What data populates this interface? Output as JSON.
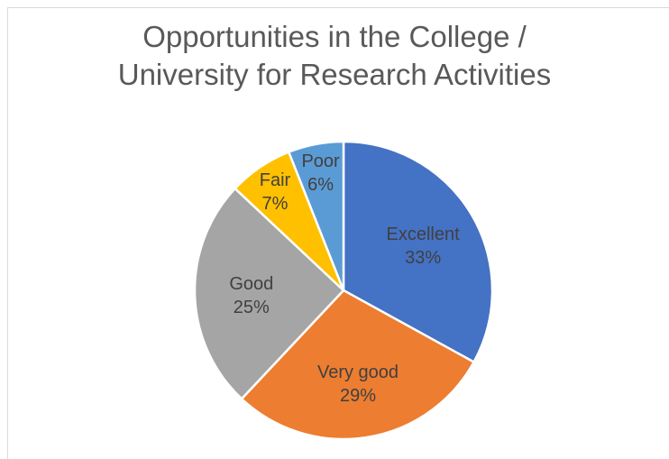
{
  "chart_data": {
    "type": "pie",
    "title_lines": [
      "Opportunities in the College /",
      "University for Research Activities"
    ],
    "categories": [
      "Excellent",
      "Very good",
      "Good",
      "Fair",
      "Poor"
    ],
    "values": [
      33,
      29,
      25,
      7,
      6
    ],
    "value_labels": [
      "33%",
      "29%",
      "25%",
      "7%",
      "6%"
    ],
    "colors": [
      "#4472c4",
      "#ed7d31",
      "#a5a5a5",
      "#ffc000",
      "#5b9bd5"
    ],
    "legend": "none",
    "data_labels": "category and percentage"
  }
}
